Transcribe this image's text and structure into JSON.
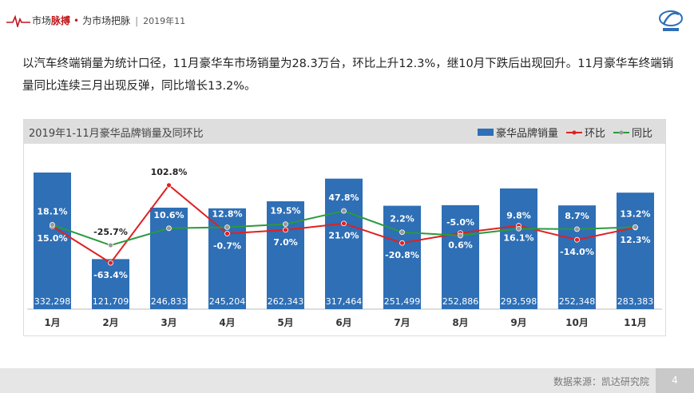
{
  "header": {
    "brand_part1": "市场",
    "brand_highlight": "脉搏",
    "brand_dot": "•",
    "brand_part2": "为市场把脉",
    "separator": "|",
    "date": "2019年11"
  },
  "intro": {
    "text": "以汽车终端销量为统计口径，11月豪华车市场销量为28.3万台，环比上升12.3%，继10月下跌后出现回升。11月豪华车终端销量同比连续三月出现反弹，同比增长13.2%。"
  },
  "chart_data": {
    "type": "bar",
    "title": "2019年1-11月豪华品牌销量及同环比",
    "categories": [
      "1月",
      "2月",
      "3月",
      "4月",
      "5月",
      "6月",
      "7月",
      "8月",
      "9月",
      "10月",
      "11月"
    ],
    "series": [
      {
        "name": "豪华品牌销量",
        "kind": "bar",
        "color": "#2e6fb6",
        "values": [
          332298,
          121709,
          246833,
          245204,
          262343,
          317464,
          251499,
          252886,
          293598,
          252348,
          283383
        ],
        "labels": [
          "332,298",
          "121,709",
          "246,833",
          "245,204",
          "262,343",
          "317,464",
          "251,499",
          "252,886",
          "293,598",
          "252,348",
          "283,383"
        ]
      },
      {
        "name": "环比",
        "kind": "line",
        "color": "#e02020",
        "values": [
          15.0,
          -63.4,
          102.8,
          -0.7,
          7.0,
          21.0,
          -20.8,
          0.6,
          16.1,
          -14.0,
          12.3
        ],
        "labels": [
          "15.0%",
          "-63.4%",
          "102.8%",
          "-0.7%",
          "7.0%",
          "21.0%",
          "-20.8%",
          "0.6%",
          "16.1%",
          "-14.0%",
          "12.3%"
        ]
      },
      {
        "name": "同比",
        "kind": "line",
        "color": "#2a9a3c",
        "values": [
          18.1,
          -25.7,
          10.6,
          12.8,
          19.5,
          47.8,
          2.2,
          -5.0,
          9.8,
          8.7,
          13.2
        ],
        "labels": [
          "18.1%",
          "-25.7%",
          "10.6%",
          "12.8%",
          "19.5%",
          "47.8%",
          "2.2%",
          "-5.0%",
          "9.8%",
          "8.7%",
          "13.2%"
        ]
      }
    ],
    "ylim_bar": [
      0,
      360000
    ],
    "ylim_pct": [
      -70,
      140
    ],
    "grid": false,
    "legend": "top-right"
  },
  "footer": {
    "source": "数据来源：凯达研究院",
    "page": "4"
  }
}
